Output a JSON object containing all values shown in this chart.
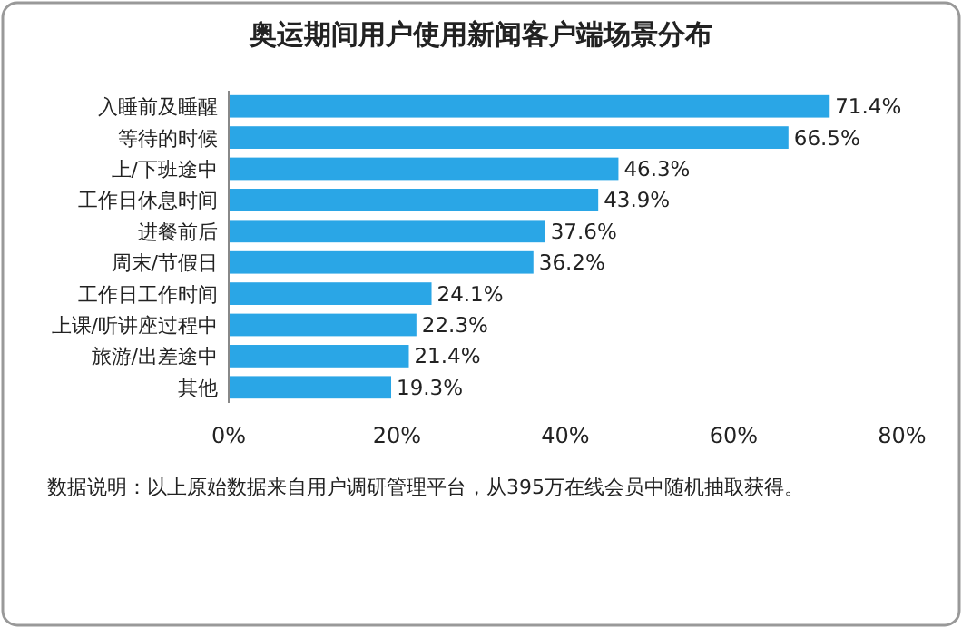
{
  "chart_data": {
    "type": "bar",
    "orientation": "horizontal",
    "title": "奥运期间用户使用新闻客户端场景分布",
    "categories": [
      "入睡前及睡醒",
      "等待的时候",
      "上/下班途中",
      "工作日休息时间",
      "进餐前后",
      "周末/节假日",
      "工作日工作时间",
      "上课/听讲座过程中",
      "旅游/出差途中",
      "其他"
    ],
    "values": [
      71.4,
      66.5,
      46.3,
      43.9,
      37.6,
      36.2,
      24.1,
      22.3,
      21.4,
      19.3
    ],
    "value_labels": [
      "71.4%",
      "66.5%",
      "46.3%",
      "43.9%",
      "37.6%",
      "36.2%",
      "24.1%",
      "22.3%",
      "21.4%",
      "19.3%"
    ],
    "color": "#2aa6e6",
    "xlim": [
      0,
      80
    ],
    "xticks": [
      {
        "value": 0,
        "label": "0%"
      },
      {
        "value": 20,
        "label": "20%"
      },
      {
        "value": 40,
        "label": "40%"
      },
      {
        "value": 60,
        "label": "60%"
      },
      {
        "value": 80,
        "label": "80%"
      }
    ],
    "annotations": [
      "数据说明：以上原始数据来自用户调研管理平台，从395万在线会员中随机抽取获得。"
    ]
  }
}
